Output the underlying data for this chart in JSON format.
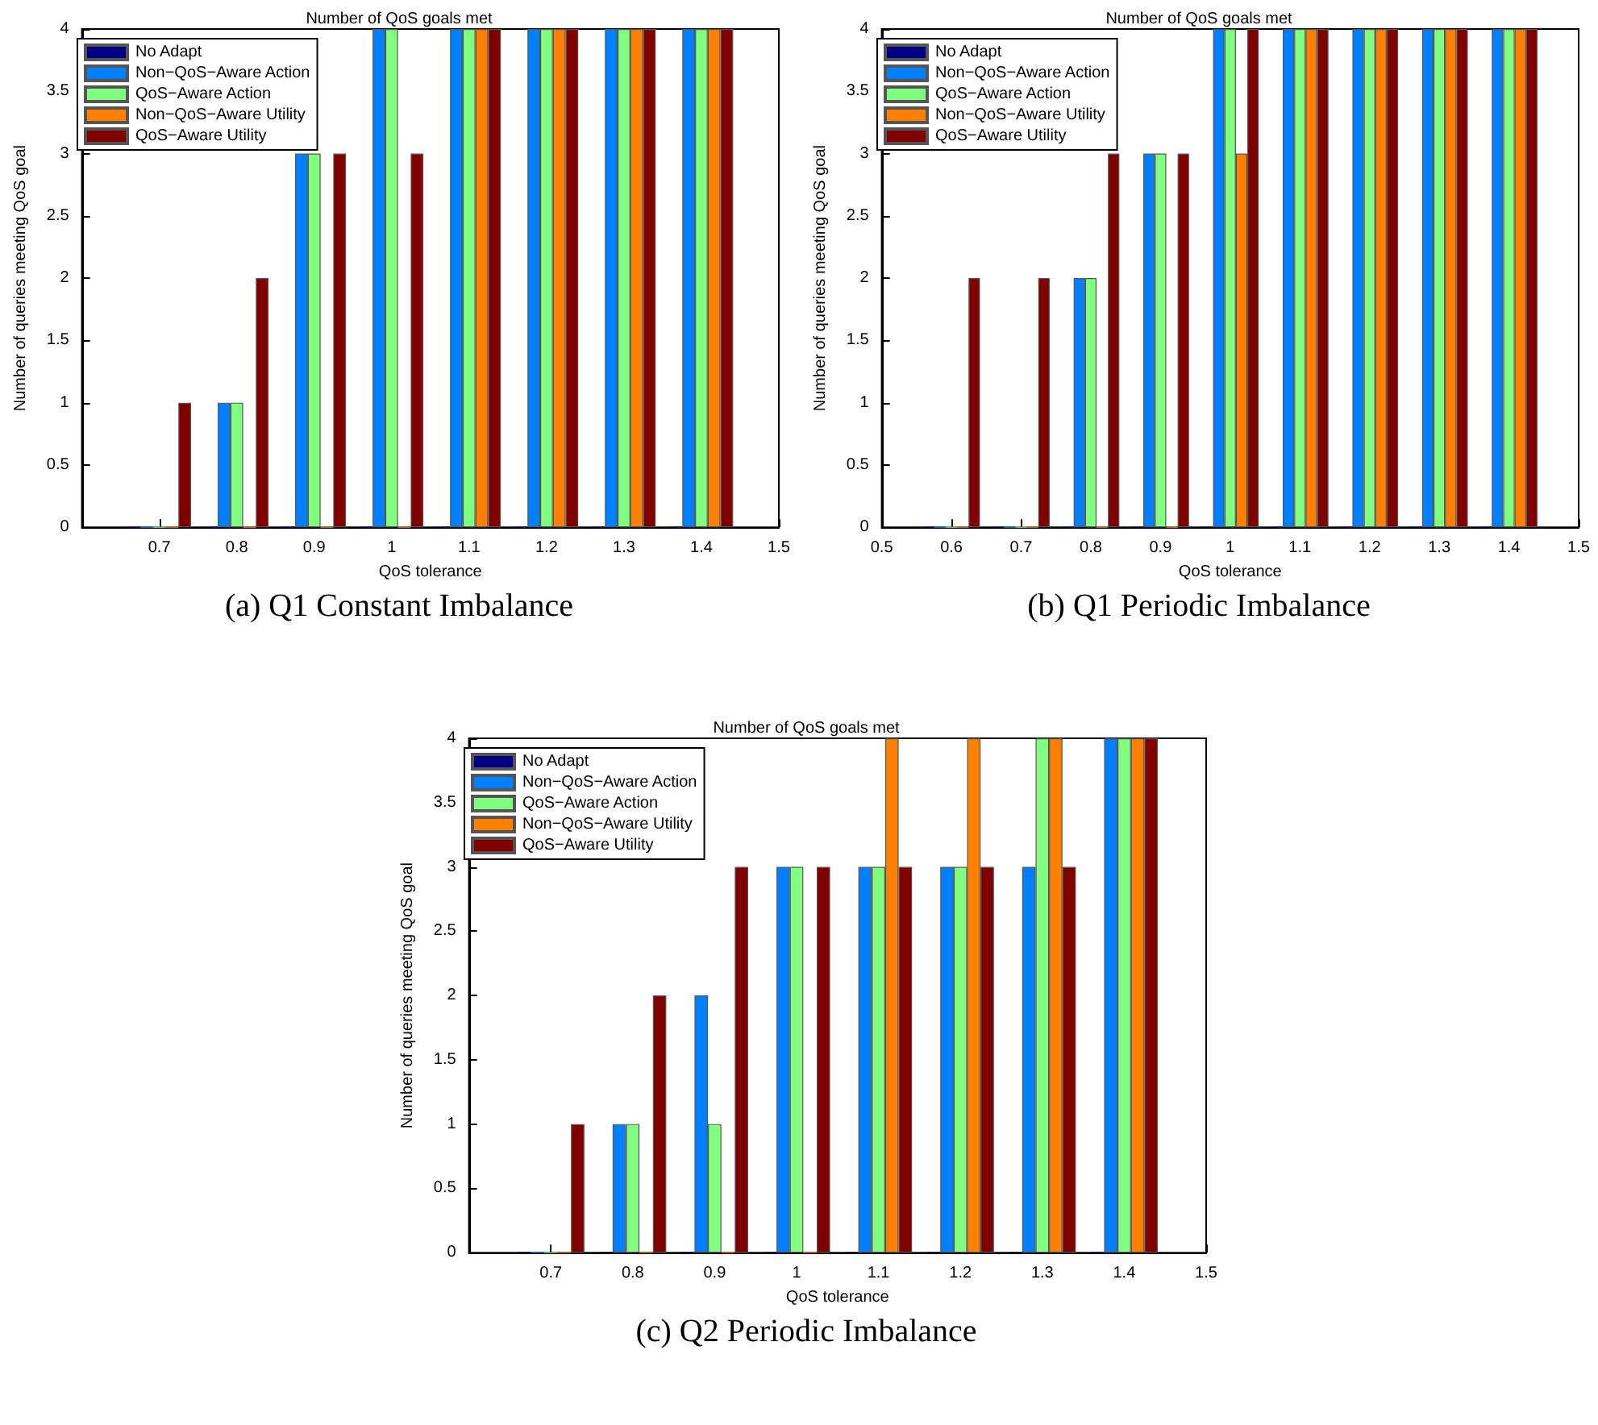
{
  "chart_data": [
    {
      "type": "bar",
      "title": "Number of QoS goals met",
      "xlabel": "QoS tolerance",
      "ylabel": "Number of queries meeting QoS goal",
      "annotations": [
        "(a) Q1 Constant Imbalance"
      ],
      "x": [
        0.7,
        0.8,
        0.9,
        1.0,
        1.1,
        1.2,
        1.3,
        1.4
      ],
      "xlim": [
        0.6,
        1.5
      ],
      "xticks": [
        0.7,
        0.8,
        0.9,
        1,
        1.1,
        1.2,
        1.3,
        1.4,
        1.5
      ],
      "ylim": [
        0,
        4
      ],
      "yticks": [
        0,
        0.5,
        1,
        1.5,
        2,
        2.5,
        3,
        3.5,
        4
      ],
      "grid": false,
      "legend": "top left",
      "series": [
        {
          "name": "No Adapt",
          "color": "#000080",
          "values": [
            0,
            0,
            0,
            0,
            0,
            0,
            0,
            0
          ]
        },
        {
          "name": "Non−QoS−Aware Action",
          "color": "#0080ff",
          "values": [
            0,
            1,
            3,
            4,
            4,
            4,
            4,
            4
          ]
        },
        {
          "name": "QoS−Aware Action",
          "color": "#80ff80",
          "values": [
            0,
            1,
            3,
            4,
            4,
            4,
            4,
            4
          ]
        },
        {
          "name": "Non−QoS−Aware Utility",
          "color": "#ff8000",
          "values": [
            0,
            0,
            0,
            0,
            4,
            4,
            4,
            4
          ]
        },
        {
          "name": "QoS−Aware Utility",
          "color": "#800000",
          "values": [
            1,
            2,
            3,
            3,
            4,
            4,
            4,
            4
          ]
        }
      ]
    },
    {
      "type": "bar",
      "title": "Number of QoS goals met",
      "xlabel": "QoS tolerance",
      "ylabel": "Number of queries meeting QoS goal",
      "annotations": [
        "(b) Q1 Periodic Imbalance"
      ],
      "x": [
        0.6,
        0.7,
        0.8,
        0.9,
        1.0,
        1.1,
        1.2,
        1.3,
        1.4
      ],
      "xlim": [
        0.5,
        1.5
      ],
      "xticks": [
        0.5,
        0.6,
        0.7,
        0.8,
        0.9,
        1,
        1.1,
        1.2,
        1.3,
        1.4,
        1.5
      ],
      "ylim": [
        0,
        4
      ],
      "yticks": [
        0,
        0.5,
        1,
        1.5,
        2,
        2.5,
        3,
        3.5,
        4
      ],
      "grid": false,
      "legend": "top left",
      "series": [
        {
          "name": "No Adapt",
          "color": "#000080",
          "values": [
            0,
            0,
            0,
            0,
            0,
            0,
            0,
            0,
            0
          ]
        },
        {
          "name": "Non−QoS−Aware Action",
          "color": "#0080ff",
          "values": [
            0,
            0,
            2,
            3,
            4,
            4,
            4,
            4,
            4
          ]
        },
        {
          "name": "QoS−Aware Action",
          "color": "#80ff80",
          "values": [
            0,
            0,
            2,
            3,
            4,
            4,
            4,
            4,
            4
          ]
        },
        {
          "name": "Non−QoS−Aware Utility",
          "color": "#ff8000",
          "values": [
            0,
            0,
            0,
            0,
            3,
            4,
            4,
            4,
            4
          ]
        },
        {
          "name": "QoS−Aware Utility",
          "color": "#800000",
          "values": [
            2,
            2,
            3,
            3,
            4,
            4,
            4,
            4,
            4
          ]
        }
      ]
    },
    {
      "type": "bar",
      "title": "Number of QoS goals met",
      "xlabel": "QoS tolerance",
      "ylabel": "Number of queries meeting QoS goal",
      "annotations": [
        "(c) Q2 Periodic Imbalance"
      ],
      "x": [
        0.7,
        0.8,
        0.9,
        1.0,
        1.1,
        1.2,
        1.3,
        1.4
      ],
      "xlim": [
        0.6,
        1.5
      ],
      "xticks": [
        0.7,
        0.8,
        0.9,
        1,
        1.1,
        1.2,
        1.3,
        1.4,
        1.5
      ],
      "ylim": [
        0,
        4
      ],
      "yticks": [
        0,
        0.5,
        1,
        1.5,
        2,
        2.5,
        3,
        3.5,
        4
      ],
      "grid": false,
      "legend": "top left",
      "series": [
        {
          "name": "No Adapt",
          "color": "#000080",
          "values": [
            0,
            0,
            0,
            0,
            0,
            0,
            0,
            0
          ]
        },
        {
          "name": "Non−QoS−Aware Action",
          "color": "#0080ff",
          "values": [
            0,
            1,
            2,
            3,
            3,
            3,
            3,
            4
          ]
        },
        {
          "name": "QoS−Aware Action",
          "color": "#80ff80",
          "values": [
            0,
            1,
            1,
            3,
            3,
            3,
            4,
            4
          ]
        },
        {
          "name": "Non−QoS−Aware Utility",
          "color": "#ff8000",
          "values": [
            0,
            0,
            0,
            0,
            4,
            4,
            4,
            4
          ]
        },
        {
          "name": "QoS−Aware Utility",
          "color": "#800000",
          "values": [
            1,
            2,
            3,
            3,
            3,
            3,
            3,
            4
          ]
        }
      ]
    }
  ]
}
